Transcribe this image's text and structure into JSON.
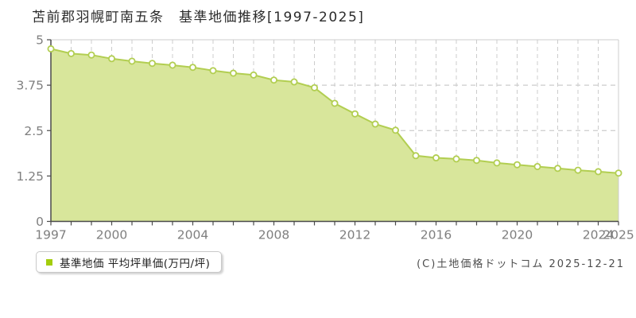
{
  "title": "苫前郡羽幌町南五条　基準地価推移[1997-2025]",
  "legend": {
    "label": "基準地価 平均坪単価(万円/坪)",
    "marker_color": "#a3cd0c"
  },
  "copyright": "(C)土地価格ドットコム 2025-12-21",
  "colors": {
    "line": "#b2ce51",
    "fill": "#d8e69b",
    "marker_fill": "#ffffff",
    "grid": "#cccccc",
    "axis": "#4a4a4a",
    "border": "#cccccc",
    "tick_label": "#7f7f7f"
  },
  "chart_data": {
    "type": "area",
    "title": "苫前郡羽幌町南五条 基準地価推移[1997-2025]",
    "series_name": "基準地価 平均坪単価(万円/坪)",
    "ylabel": "平均坪単価(万円/坪)",
    "xlabel": "",
    "x": [
      1997,
      1998,
      1999,
      2000,
      2001,
      2002,
      2003,
      2004,
      2005,
      2006,
      2007,
      2008,
      2009,
      2010,
      2011,
      2012,
      2013,
      2014,
      2015,
      2016,
      2017,
      2018,
      2019,
      2020,
      2021,
      2022,
      2023,
      2024,
      2025
    ],
    "values": [
      4.75,
      4.62,
      4.58,
      4.48,
      4.41,
      4.35,
      4.3,
      4.24,
      4.15,
      4.08,
      4.03,
      3.89,
      3.84,
      3.68,
      3.25,
      2.96,
      2.68,
      2.51,
      1.81,
      1.75,
      1.72,
      1.68,
      1.61,
      1.56,
      1.51,
      1.46,
      1.41,
      1.37,
      1.33
    ],
    "ylim": [
      0,
      5
    ],
    "yticks": [
      0,
      1.25,
      2.5,
      3.75,
      5
    ],
    "ytick_labels": [
      "0",
      "1.25",
      "2.5",
      "3.75",
      "5"
    ],
    "xtick_years": [
      1997,
      2000,
      2004,
      2008,
      2012,
      2016,
      2020,
      2024,
      2025
    ],
    "grid": "dashed",
    "legend_position": "bottom-left"
  }
}
